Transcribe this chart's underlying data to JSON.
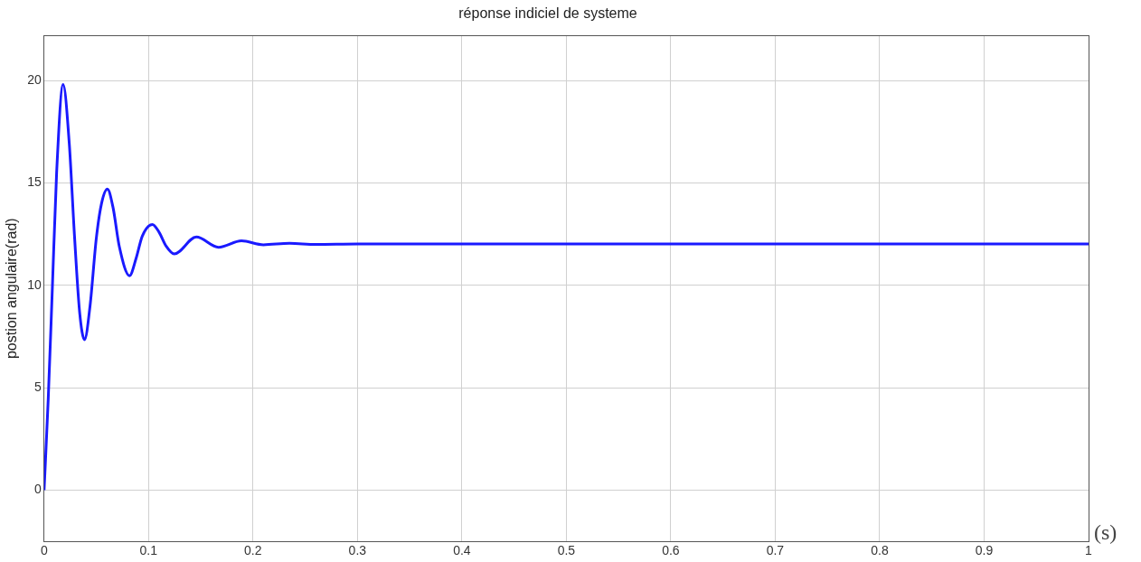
{
  "chart_data": {
    "type": "line",
    "title": "réponse indiciel de systeme",
    "xlabel": "(s)",
    "ylabel": "postion angulaire(rad)",
    "x": [
      0,
      0.004,
      0.008,
      0.012,
      0.0182,
      0.024,
      0.029,
      0.034,
      0.0387,
      0.044,
      0.05,
      0.055,
      0.0606,
      0.066,
      0.072,
      0.0818,
      0.088,
      0.094,
      0.1037,
      0.11,
      0.117,
      0.1246,
      0.1458,
      0.167,
      0.189,
      0.21,
      0.235,
      0.26,
      0.3,
      1
    ],
    "series": [
      {
        "color": "#1a1aff",
        "values": [
          0,
          4.5,
          10,
          15.5,
          19.8,
          17,
          12.5,
          8.7,
          7.35,
          9,
          12.3,
          14,
          14.7,
          13.8,
          11.9,
          10.47,
          11.3,
          12.4,
          12.97,
          12.6,
          11.9,
          11.53,
          12.36,
          11.86,
          12.17,
          11.98,
          12.05,
          12,
          12.02,
          12.02
        ]
      }
    ],
    "xlim": [
      0,
      1
    ],
    "xticks": [
      0,
      0.1,
      0.2,
      0.3,
      0.4,
      0.5,
      0.6,
      0.7,
      0.8,
      0.9,
      1
    ],
    "ylim": [
      -2.5,
      22.2
    ],
    "yticks": [
      0,
      5,
      10,
      15,
      20
    ],
    "grid": true,
    "legend": false,
    "marker": "none",
    "line_style": "solid"
  }
}
